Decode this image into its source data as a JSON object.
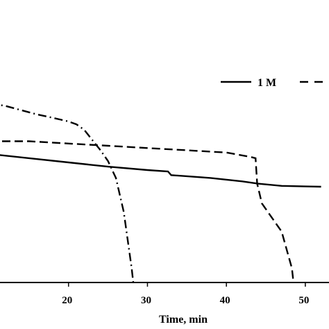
{
  "chart_data": {
    "type": "line",
    "title": "",
    "xlabel": "Time, min",
    "ylabel": "",
    "xlim": [
      10,
      53
    ],
    "ylim": [
      0,
      1
    ],
    "grid": false,
    "legend_placement": "top-right",
    "x_ticks": [
      20,
      30,
      40,
      50
    ],
    "x_tick_labels": [
      "20",
      "30",
      "40",
      "50"
    ],
    "series": [
      {
        "name": "1 M",
        "style": "solid",
        "color": "#000000",
        "points": [
          [
            10,
            0.455
          ],
          [
            15,
            0.44
          ],
          [
            20,
            0.425
          ],
          [
            25,
            0.41
          ],
          [
            30,
            0.398
          ],
          [
            32.6,
            0.393
          ],
          [
            33,
            0.38
          ],
          [
            38,
            0.37
          ],
          [
            42,
            0.358
          ],
          [
            44,
            0.35
          ],
          [
            47,
            0.342
          ],
          [
            50,
            0.34
          ],
          [
            52,
            0.339
          ]
        ]
      },
      {
        "name": "",
        "style": "dashed",
        "color": "#000000",
        "points": [
          [
            10,
            0.5
          ],
          [
            12,
            0.5
          ],
          [
            15,
            0.5
          ],
          [
            20,
            0.492
          ],
          [
            25,
            0.484
          ],
          [
            30,
            0.476
          ],
          [
            35,
            0.468
          ],
          [
            40,
            0.46
          ],
          [
            43,
            0.445
          ],
          [
            43.7,
            0.44
          ],
          [
            43.9,
            0.35
          ],
          [
            44.5,
            0.28
          ],
          [
            46,
            0.22
          ],
          [
            47,
            0.18
          ],
          [
            47.8,
            0.1
          ],
          [
            48.3,
            0.05
          ],
          [
            48.5,
            0.0
          ]
        ]
      },
      {
        "name": "",
        "style": "dashdot",
        "color": "#000000",
        "points": [
          [
            10,
            0.635
          ],
          [
            12,
            0.625
          ],
          [
            14,
            0.61
          ],
          [
            16,
            0.595
          ],
          [
            18,
            0.583
          ],
          [
            20,
            0.57
          ],
          [
            21,
            0.56
          ],
          [
            22,
            0.54
          ],
          [
            23,
            0.505
          ],
          [
            24,
            0.47
          ],
          [
            25,
            0.43
          ],
          [
            26,
            0.37
          ],
          [
            27,
            0.25
          ],
          [
            27.5,
            0.15
          ],
          [
            28,
            0.05
          ],
          [
            28.2,
            0.0
          ]
        ]
      }
    ]
  }
}
